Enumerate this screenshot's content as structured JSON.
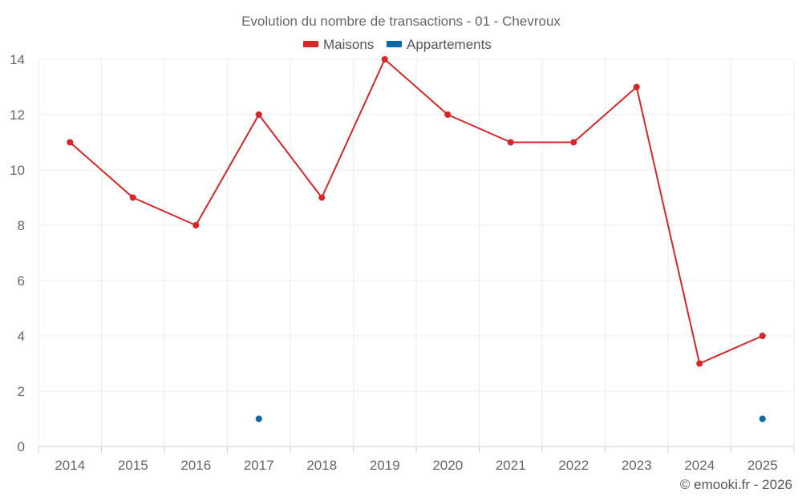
{
  "chart_data": {
    "type": "line",
    "title": "Evolution du nombre de transactions - 01 - Chevroux",
    "xlabel": "",
    "ylabel": "",
    "categories": [
      "2014",
      "2015",
      "2016",
      "2017",
      "2018",
      "2019",
      "2020",
      "2021",
      "2022",
      "2023",
      "2024",
      "2025"
    ],
    "ylim": [
      0,
      14
    ],
    "yticks": [
      0,
      2,
      4,
      6,
      8,
      10,
      12,
      14
    ],
    "grid": true,
    "legend_position": "top-center",
    "series": [
      {
        "name": "Maisons",
        "color": "#d62728",
        "line": true,
        "values": [
          11,
          9,
          8,
          12,
          9,
          14,
          12,
          11,
          11,
          13,
          3,
          4
        ]
      },
      {
        "name": "Appartements",
        "color": "#0868a8",
        "line": false,
        "values": [
          null,
          null,
          null,
          1,
          null,
          null,
          null,
          null,
          null,
          null,
          null,
          1
        ]
      }
    ]
  },
  "credit": "© emooki.fr - 2026"
}
